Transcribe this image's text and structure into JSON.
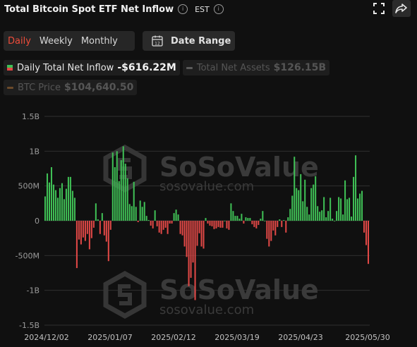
{
  "header": {
    "title": "Total Bitcoin Spot ETF Net Inflow",
    "timezone": "EST"
  },
  "icons": {
    "info": "info-icon",
    "fullscreen": "fullscreen-icon",
    "share": "share-icon",
    "calendar": "calendar-icon"
  },
  "periods": {
    "daily": "Daily",
    "weekly": "Weekly",
    "monthly": "Monthly",
    "active": "Daily"
  },
  "date_range": {
    "label": "Date Range",
    "icon_text": "12"
  },
  "legend": {
    "net_inflow": {
      "name": "Daily Total Net Inflow",
      "value": "-$616.22M"
    },
    "net_assets": {
      "name": "Total Net Assets",
      "value": "$126.15B"
    },
    "btc_price": {
      "name": "BTC Price",
      "value": "$104,640.50"
    }
  },
  "watermark": {
    "brand": "SoSoValue",
    "url": "sosovalue.com"
  },
  "colors": {
    "positive": "#3fbf55",
    "negative": "#e04846",
    "background": "#101010",
    "active_tab": "#ee4c3a"
  },
  "chart_data": {
    "type": "bar",
    "ylim": [
      -1.5,
      1.5
    ],
    "yticks": [
      "1.5B",
      "1B",
      "500M",
      "0",
      "-500M",
      "-1B",
      "-1.5B"
    ],
    "x_tick_labels": [
      "2024/12/02",
      "2025/01/07",
      "2025/02/12",
      "2025/03/19",
      "2025/04/23",
      "2025/05/30"
    ],
    "x_range": [
      "2024/12/02",
      "2025/05/30"
    ],
    "unit": "B",
    "grid": true,
    "values": [
      0.35,
      0.68,
      0.55,
      0.77,
      0.52,
      0.44,
      0.33,
      0.47,
      0.54,
      0.31,
      0.46,
      0.63,
      0.63,
      0.43,
      0.33,
      -0.68,
      -0.27,
      -0.34,
      -0.24,
      -0.29,
      -0.19,
      -0.41,
      -0.25,
      -0.1,
      0.25,
      0.02,
      -0.19,
      0.11,
      -0.21,
      -0.3,
      -0.58,
      -0.13,
      0.98,
      0.77,
      1.0,
      0.57,
      0.87,
      1.07,
      0.82,
      0.61,
      0.24,
      0.21,
      0.56,
      0.2,
      -0.02,
      0.29,
      0.2,
      0.27,
      0.07,
      0.01,
      -0.07,
      -0.11,
      0.15,
      -0.08,
      -0.17,
      -0.19,
      -0.13,
      -0.1,
      -0.19,
      -0.04,
      -0.04,
      0.11,
      0.16,
      0.09,
      -0.19,
      -0.21,
      -0.37,
      -0.52,
      -0.94,
      -0.82,
      -0.6,
      -1.14,
      -0.36,
      -0.18,
      -0.37,
      -0.4,
      0.04,
      -0.04,
      -0.07,
      -0.08,
      -0.12,
      -0.11,
      -0.09,
      -0.1,
      -0.1,
      0.0,
      -0.11,
      -0.13,
      0.25,
      0.14,
      0.07,
      0.07,
      0.03,
      0.1,
      -0.04,
      0.05,
      0.04,
      0.04,
      -0.05,
      -0.09,
      -0.11,
      -0.06,
      0.03,
      0.14,
      0.0,
      -0.26,
      -0.37,
      -0.29,
      -0.14,
      -0.21,
      -0.09,
      0.02,
      -0.09,
      0.01,
      -0.17,
      0.05,
      0.17,
      0.36,
      0.92,
      0.47,
      0.44,
      0.67,
      0.28,
      0.59,
      0.2,
      0.09,
      0.47,
      0.52,
      0.64,
      0.21,
      0.13,
      0.15,
      0.34,
      0.05,
      0.14,
      0.33,
      0.03,
      0.0,
      0.14,
      0.34,
      0.32,
      0.09,
      0.58,
      0.31,
      0.33,
      0.06,
      0.63,
      0.94,
      0.32,
      0.39,
      0.43,
      -0.17,
      -0.35,
      -0.62
    ]
  }
}
